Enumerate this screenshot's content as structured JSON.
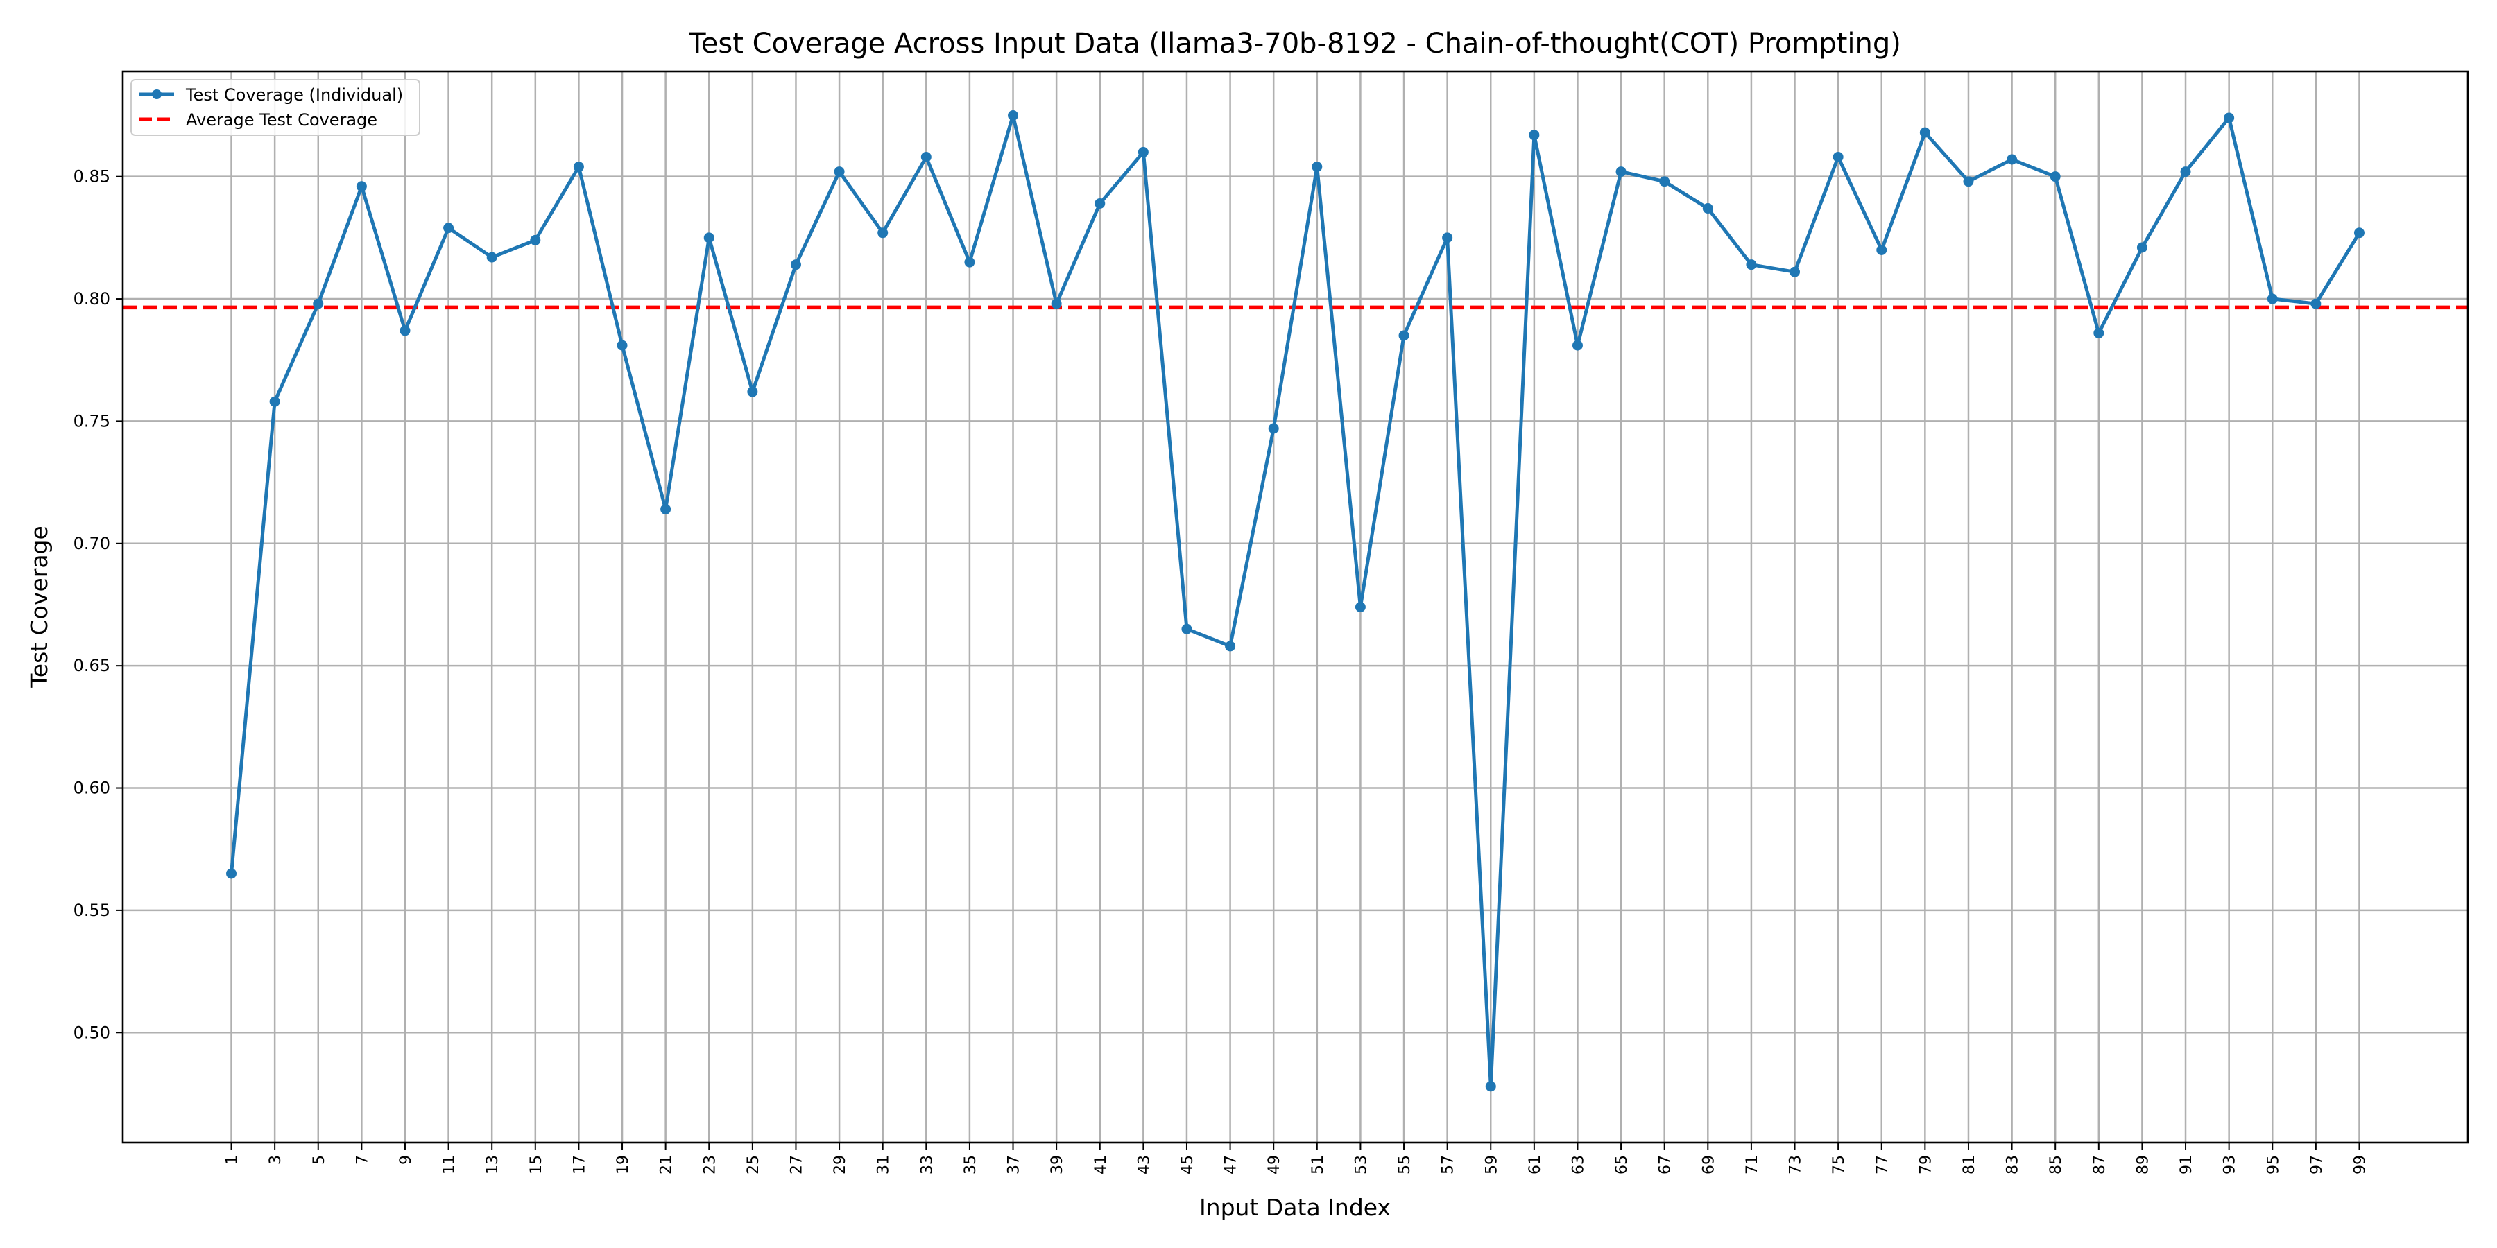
{
  "chart_data": {
    "type": "line",
    "title": "Test Coverage Across Input Data (llama3-70b-8192 - Chain-of-thought(COT) Prompting)",
    "xlabel": "Input Data Index",
    "ylabel": "Test Coverage",
    "x": [
      1,
      3,
      5,
      7,
      9,
      11,
      13,
      15,
      17,
      19,
      21,
      23,
      25,
      27,
      29,
      31,
      33,
      35,
      37,
      39,
      41,
      43,
      45,
      47,
      49,
      51,
      53,
      55,
      57,
      59,
      61,
      63,
      65,
      67,
      69,
      71,
      73,
      75,
      77,
      79,
      81,
      83,
      85,
      87,
      89,
      91,
      93,
      95,
      97,
      99
    ],
    "xlim": [
      -4,
      104
    ],
    "ylim": [
      0.455,
      0.893
    ],
    "yticks": [
      0.5,
      0.55,
      0.6,
      0.65,
      0.7,
      0.75,
      0.8,
      0.85
    ],
    "ytick_labels": [
      "0.50",
      "0.55",
      "0.60",
      "0.65",
      "0.70",
      "0.75",
      "0.80",
      "0.85"
    ],
    "grid": true,
    "legend_position": "top-left",
    "series": [
      {
        "name": "Test Coverage (Individual)",
        "color": "#1f77b4",
        "style": "solid-with-markers",
        "values": [
          0.565,
          0.758,
          0.798,
          0.846,
          0.787,
          0.829,
          0.817,
          0.824,
          0.854,
          0.781,
          0.714,
          0.825,
          0.762,
          0.814,
          0.852,
          0.827,
          0.858,
          0.815,
          0.875,
          0.798,
          0.839,
          0.86,
          0.665,
          0.658,
          0.747,
          0.854,
          0.674,
          0.785,
          0.825,
          0.478,
          0.867,
          0.781,
          0.852,
          0.848,
          0.837,
          0.814,
          0.811,
          0.858,
          0.82,
          0.868,
          0.848,
          0.857,
          0.85,
          0.786,
          0.821,
          0.852,
          0.874,
          0.8,
          0.798,
          0.827
        ]
      },
      {
        "name": "Average Test Coverage",
        "color": "#ff0000",
        "style": "dashed",
        "value": 0.7965
      }
    ]
  }
}
